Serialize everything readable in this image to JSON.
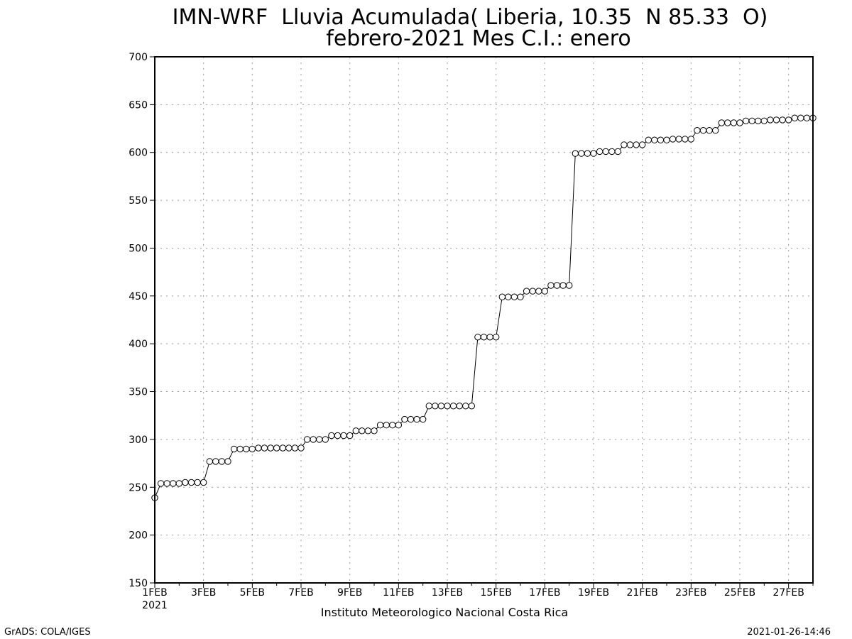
{
  "chart_data": {
    "type": "line",
    "title_line1": "IMN-WRF  Lluvia Acumulada( Liberia, 10.35  N 85.33  O)",
    "title_line2": "febrero-2021 Mes C.I.: enero",
    "xlabel": "",
    "ylabel": "",
    "ylim": [
      150,
      700
    ],
    "xlim_days": [
      1,
      28
    ],
    "y_ticks": [
      "150",
      "200",
      "250",
      "300",
      "350",
      "400",
      "450",
      "500",
      "550",
      "600",
      "650",
      "700"
    ],
    "x_tick_labels": [
      "1FEB",
      "3FEB",
      "5FEB",
      "7FEB",
      "9FEB",
      "11FEB",
      "13FEB",
      "15FEB",
      "17FEB",
      "19FEB",
      "21FEB",
      "23FEB",
      "25FEB",
      "27FEB"
    ],
    "x_year_label": "2021",
    "grid": true,
    "marker": "open-circle",
    "series": [
      {
        "x": [
          1,
          1.25,
          1.5,
          1.75,
          2,
          2.25,
          2.5,
          2.75,
          3,
          3.25,
          3.5,
          3.75,
          4,
          4.25,
          4.5,
          4.75,
          5,
          5.25,
          5.5,
          5.75,
          6,
          6.25,
          6.5,
          6.75,
          7,
          7.25,
          7.5,
          7.75,
          8,
          8.25,
          8.5,
          8.75,
          9,
          9.25,
          9.5,
          9.75,
          10,
          10.25,
          10.5,
          10.75,
          11,
          11.25,
          11.5,
          11.75,
          12,
          12.25,
          12.5,
          12.75,
          13,
          13.25,
          13.5,
          13.75,
          14,
          14.25,
          14.5,
          14.75,
          15,
          15.25,
          15.5,
          15.75,
          16,
          16.25,
          16.5,
          16.75,
          17,
          17.25,
          17.5,
          17.75,
          18,
          18.25,
          18.5,
          18.75,
          19,
          19.25,
          19.5,
          19.75,
          20,
          20.25,
          20.5,
          20.75,
          21,
          21.25,
          21.5,
          21.75,
          22,
          22.25,
          22.5,
          22.75,
          23,
          23.25,
          23.5,
          23.75,
          24,
          24.25,
          24.5,
          24.75,
          25,
          25.25,
          25.5,
          25.75,
          26,
          26.25,
          26.5,
          26.75,
          27,
          27.25,
          27.5,
          27.75,
          28
        ],
        "y": [
          239,
          254,
          254,
          254,
          254,
          255,
          255,
          255,
          255,
          277,
          277,
          277,
          277,
          290,
          290,
          290,
          290,
          291,
          291,
          291,
          291,
          291,
          291,
          291,
          291,
          300,
          300,
          300,
          300,
          304,
          304,
          304,
          304,
          309,
          309,
          309,
          309,
          315,
          315,
          315,
          315,
          321,
          321,
          321,
          321,
          335,
          335,
          335,
          335,
          335,
          335,
          335,
          335,
          407,
          407,
          407,
          407,
          449,
          449,
          449,
          449,
          455,
          455,
          455,
          455,
          461,
          461,
          461,
          461,
          599,
          599,
          599,
          599,
          601,
          601,
          601,
          601,
          608,
          608,
          608,
          608,
          613,
          613,
          613,
          613,
          614,
          614,
          614,
          614,
          623,
          623,
          623,
          623,
          631,
          631,
          631,
          631,
          633,
          633,
          633,
          633,
          634,
          634,
          634,
          634,
          636,
          636,
          636,
          636
        ]
      }
    ]
  },
  "footer": {
    "source": "Instituto Meteorologico Nacional Costa Rica",
    "left_credit": "GrADS: COLA/IGES",
    "right_credit": "2021-01-26-14:46"
  }
}
